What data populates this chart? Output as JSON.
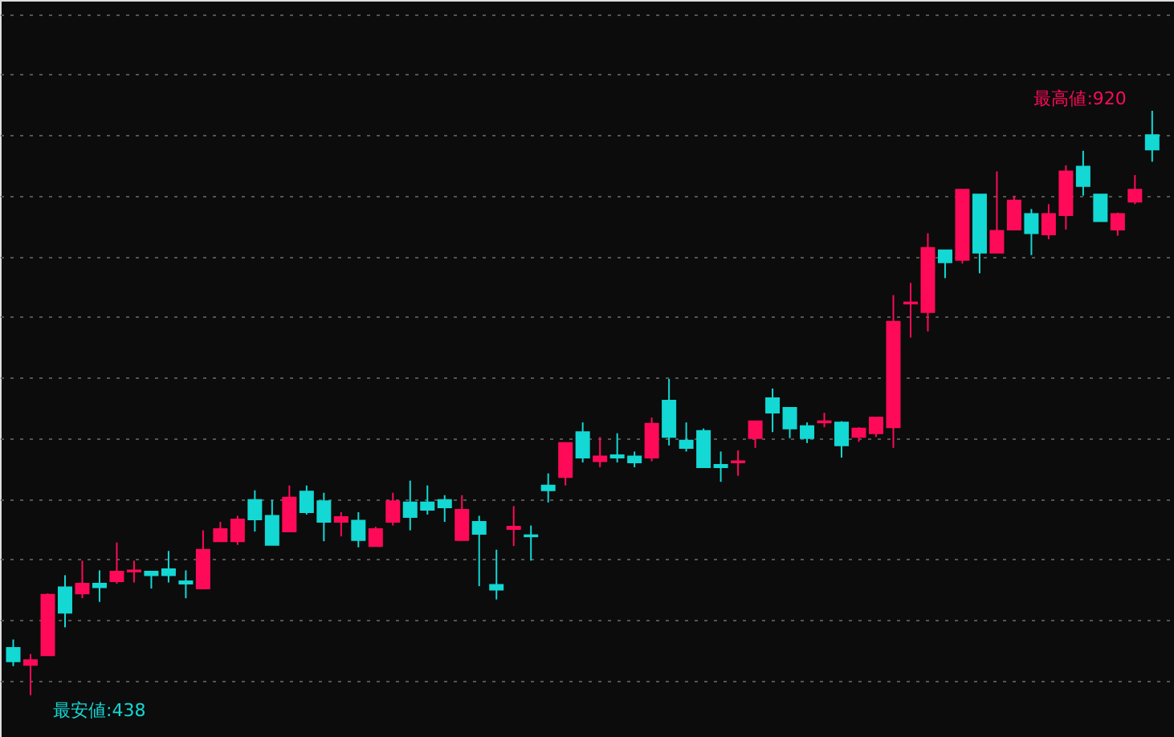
{
  "chart_data": {
    "type": "candlestick",
    "categories": [
      null,
      null,
      null,
      null,
      null,
      null,
      null,
      null,
      null,
      null,
      null,
      null,
      null,
      null,
      null,
      null,
      null,
      null,
      null,
      null,
      null,
      null,
      null,
      null,
      null,
      null,
      null,
      null,
      null,
      null,
      null,
      null,
      null,
      null,
      null,
      null,
      null,
      null,
      null,
      null,
      null,
      null,
      null,
      null,
      null,
      null,
      null,
      null,
      null,
      null,
      null,
      null,
      null,
      null,
      null,
      null,
      null,
      null,
      null,
      null,
      null,
      null,
      null,
      null,
      null,
      null,
      null
    ],
    "ohlc": [
      [
        477,
        484,
        462,
        466
      ],
      [
        463,
        472,
        438,
        467
      ],
      [
        471,
        522,
        471,
        521
      ],
      [
        527,
        537,
        494,
        506
      ],
      [
        522,
        549,
        518,
        530
      ],
      [
        530,
        541,
        515,
        527
      ],
      [
        532,
        564,
        530,
        540
      ],
      [
        540,
        549,
        531,
        541
      ],
      [
        540,
        540,
        526,
        537
      ],
      [
        542,
        557,
        531,
        537
      ],
      [
        532,
        541,
        518,
        530
      ],
      [
        526,
        574,
        526,
        558
      ],
      [
        565,
        581,
        565,
        575
      ],
      [
        565,
        586,
        562,
        583
      ],
      [
        599,
        607,
        573,
        583
      ],
      [
        586,
        599,
        562,
        562
      ],
      [
        573,
        611,
        573,
        601
      ],
      [
        606,
        611,
        587,
        589
      ],
      [
        598,
        605,
        565,
        581
      ],
      [
        581,
        589,
        569,
        585
      ],
      [
        582,
        589,
        560,
        566
      ],
      [
        561,
        577,
        561,
        575
      ],
      [
        581,
        605,
        578,
        598
      ],
      [
        597,
        615,
        574,
        585
      ],
      [
        597,
        611,
        587,
        591
      ],
      [
        599,
        603,
        581,
        593
      ],
      [
        566,
        603,
        566,
        591
      ],
      [
        581,
        586,
        528,
        571
      ],
      [
        529,
        558,
        517,
        525
      ],
      [
        575,
        594,
        561,
        577
      ],
      [
        570,
        578,
        549,
        569
      ],
      [
        611,
        621,
        597,
        607
      ],
      [
        618,
        646,
        611,
        646
      ],
      [
        655,
        663,
        630,
        634
      ],
      [
        631,
        651,
        626,
        635
      ],
      [
        636,
        654,
        630,
        634
      ],
      [
        635,
        639,
        626,
        630
      ],
      [
        634,
        667,
        631,
        662
      ],
      [
        681,
        699,
        644,
        651
      ],
      [
        648,
        663,
        639,
        642
      ],
      [
        656,
        658,
        626,
        626
      ],
      [
        628,
        639,
        614,
        626
      ],
      [
        630,
        640,
        619,
        631
      ],
      [
        650,
        664,
        642,
        664
      ],
      [
        683,
        691,
        655,
        671
      ],
      [
        675,
        675,
        650,
        658
      ],
      [
        660,
        663,
        646,
        650
      ],
      [
        663,
        671,
        659,
        664
      ],
      [
        663,
        664,
        634,
        644
      ],
      [
        651,
        659,
        647,
        658
      ],
      [
        654,
        667,
        651,
        667
      ],
      [
        659,
        768,
        642,
        746
      ],
      [
        761,
        778,
        733,
        762
      ],
      [
        754,
        819,
        738,
        807
      ],
      [
        805,
        805,
        782,
        795
      ],
      [
        797,
        855,
        794,
        855
      ],
      [
        851,
        851,
        786,
        803
      ],
      [
        803,
        870,
        803,
        821
      ],
      [
        822,
        850,
        822,
        846
      ],
      [
        835,
        839,
        801,
        819
      ],
      [
        818,
        843,
        814,
        835
      ],
      [
        834,
        875,
        822,
        870
      ],
      [
        874,
        887,
        850,
        858
      ],
      [
        851,
        851,
        829,
        829
      ],
      [
        822,
        836,
        817,
        835
      ],
      [
        845,
        867,
        843,
        855
      ],
      [
        900,
        920,
        878,
        888
      ]
    ],
    "colors": [
      "#13d8d4",
      "#ff0a58",
      "#ff0a58",
      "#13d8d4",
      "#ff0a58",
      "#13d8d4",
      "#ff0a58",
      "#ff0a58",
      "#13d8d4",
      "#13d8d4",
      "#13d8d4",
      "#ff0a58",
      "#ff0a58",
      "#ff0a58",
      "#13d8d4",
      "#13d8d4",
      "#ff0a58",
      "#13d8d4",
      "#13d8d4",
      "#ff0a58",
      "#13d8d4",
      "#ff0a58",
      "#ff0a58",
      "#13d8d4",
      "#13d8d4",
      "#13d8d4",
      "#ff0a58",
      "#13d8d4",
      "#13d8d4",
      "#ff0a58",
      "#13d8d4",
      "#13d8d4",
      "#ff0a58",
      "#13d8d4",
      "#ff0a58",
      "#13d8d4",
      "#13d8d4",
      "#ff0a58",
      "#13d8d4",
      "#13d8d4",
      "#13d8d4",
      "#13d8d4",
      "#ff0a58",
      "#ff0a58",
      "#13d8d4",
      "#13d8d4",
      "#13d8d4",
      "#ff0a58",
      "#13d8d4",
      "#ff0a58",
      "#ff0a58",
      "#ff0a58",
      "#ff0a58",
      "#ff0a58",
      "#13d8d4",
      "#ff0a58",
      "#13d8d4",
      "#ff0a58",
      "#ff0a58",
      "#13d8d4",
      "#ff0a58",
      "#ff0a58",
      "#13d8d4",
      "#13d8d4",
      "#ff0a58",
      "#ff0a58",
      "#13d8d4"
    ],
    "annotations": [
      "最高値:920",
      "最安値:438"
    ],
    "grid": "y"
  }
}
